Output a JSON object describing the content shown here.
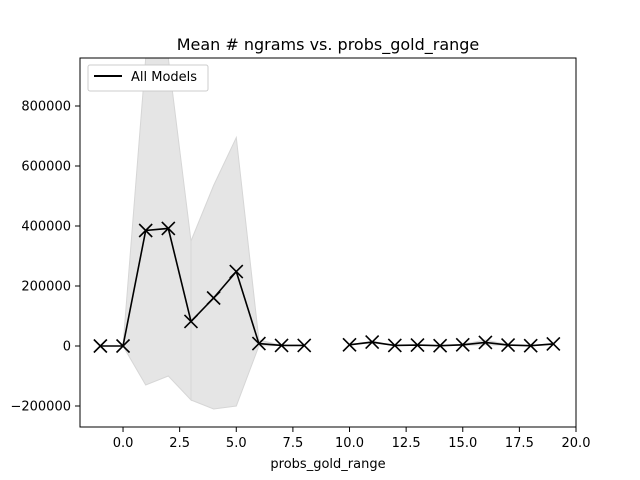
{
  "chart_data": {
    "type": "line",
    "title": "Mean # ngrams vs. probs_gold_range",
    "xlabel": "probs_gold_range",
    "ylabel": "",
    "xlim": [
      -1.9,
      20.0
    ],
    "ylim": [
      -270000,
      960000
    ],
    "xticks": [
      0.0,
      2.5,
      5.0,
      7.5,
      10.0,
      12.5,
      15.0,
      17.5,
      20.0
    ],
    "xtick_labels": [
      "0.0",
      "2.5",
      "5.0",
      "7.5",
      "10.0",
      "12.5",
      "15.0",
      "17.5",
      "20.0"
    ],
    "yticks": [
      -200000,
      0,
      200000,
      400000,
      600000,
      800000
    ],
    "ytick_labels": [
      "−200000",
      "0",
      "200000",
      "400000",
      "600000",
      "800000"
    ],
    "grid": false,
    "legend": {
      "position": "top-left",
      "entries": [
        "All Models"
      ]
    },
    "series": [
      {
        "name": "All Models",
        "color": "#000000",
        "marker": "x",
        "segments": [
          [
            -1,
            0,
            1,
            2,
            3
          ],
          [
            3,
            4,
            5,
            6,
            7,
            8
          ],
          [
            10,
            11,
            12,
            13,
            14,
            15,
            16,
            17,
            18,
            19
          ]
        ],
        "x": [
          -1,
          0,
          1,
          2,
          3,
          4,
          5,
          6,
          7,
          8,
          10,
          11,
          12,
          13,
          14,
          15,
          16,
          17,
          18,
          19
        ],
        "y": [
          0,
          0,
          385000,
          392000,
          82000,
          160000,
          248000,
          8000,
          2000,
          2000,
          4000,
          13000,
          2000,
          3000,
          1000,
          4000,
          12000,
          3000,
          1000,
          7000
        ],
        "band_lower": [
          0,
          0,
          -130000,
          -100000,
          -180000,
          -210000,
          -200000,
          0,
          2000,
          2000,
          4000,
          10000,
          2000,
          3000,
          1000,
          2000,
          4000,
          2000,
          1000,
          5000
        ],
        "band_upper": [
          0,
          0,
          960000,
          960000,
          350000,
          535000,
          695000,
          20000,
          2000,
          2000,
          4000,
          16000,
          2000,
          3000,
          1000,
          6000,
          20000,
          4000,
          1000,
          9000
        ],
        "band_color": "#e5e5e5"
      }
    ]
  }
}
